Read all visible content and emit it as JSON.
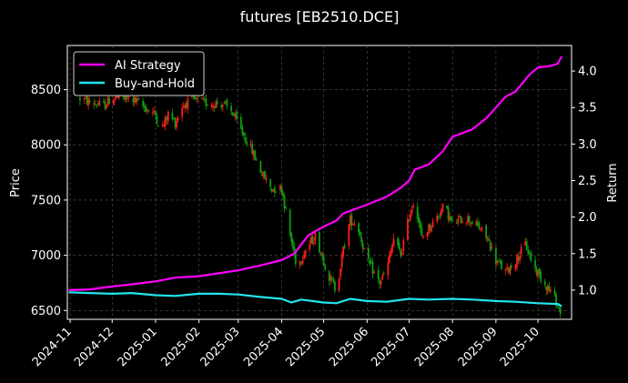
{
  "chart_data": {
    "type": "line",
    "title": "futures [EB2510.DCE]",
    "ylabel_left": "Price",
    "ylabel_right": "Return",
    "x_range": [
      "2024-10-30",
      "2025-10-25"
    ],
    "x_ticks": [
      "2024-11",
      "2024-12",
      "2025-01",
      "2025-02",
      "2025-03",
      "2025-04",
      "2025-05",
      "2025-06",
      "2025-07",
      "2025-08",
      "2025-09",
      "2025-10"
    ],
    "ylim_left": [
      6420,
      8900
    ],
    "yticks_left": [
      6500,
      7000,
      7500,
      8000,
      8500
    ],
    "ylim_right": [
      0.6,
      4.35
    ],
    "yticks_right": [
      1.0,
      1.5,
      2.0,
      2.5,
      3.0,
      3.5,
      4.0
    ],
    "ytick_labels_right": [
      "1.0",
      "1.5",
      "2.0",
      "2.5",
      "3.0",
      "3.5",
      "4.0"
    ],
    "grid": true,
    "legend_position": "top-left",
    "colors": {
      "background": "#000000",
      "ai_strategy": "#ff00ff",
      "buy_and_hold": "#22e5f0",
      "candle_up": "#ff1a1a",
      "candle_down": "#0f9d0f",
      "grid": "#555555"
    },
    "series": [
      {
        "name": "AI Strategy",
        "axis": "right",
        "points": [
          [
            "2024-10-31",
            1.0
          ],
          [
            "2024-11-15",
            1.01
          ],
          [
            "2024-12-01",
            1.05
          ],
          [
            "2024-12-15",
            1.08
          ],
          [
            "2025-01-01",
            1.12
          ],
          [
            "2025-01-15",
            1.17
          ],
          [
            "2025-02-01",
            1.19
          ],
          [
            "2025-02-15",
            1.23
          ],
          [
            "2025-03-01",
            1.27
          ],
          [
            "2025-03-15",
            1.33
          ],
          [
            "2025-04-01",
            1.41
          ],
          [
            "2025-04-10",
            1.5
          ],
          [
            "2025-04-20",
            1.75
          ],
          [
            "2025-05-01",
            1.87
          ],
          [
            "2025-05-10",
            1.95
          ],
          [
            "2025-05-15",
            2.05
          ],
          [
            "2025-06-01",
            2.17
          ],
          [
            "2025-06-15",
            2.28
          ],
          [
            "2025-06-25",
            2.4
          ],
          [
            "2025-07-01",
            2.5
          ],
          [
            "2025-07-05",
            2.65
          ],
          [
            "2025-07-15",
            2.72
          ],
          [
            "2025-07-25",
            2.9
          ],
          [
            "2025-08-01",
            3.1
          ],
          [
            "2025-08-15",
            3.2
          ],
          [
            "2025-08-25",
            3.35
          ],
          [
            "2025-09-01",
            3.5
          ],
          [
            "2025-09-08",
            3.65
          ],
          [
            "2025-09-15",
            3.72
          ],
          [
            "2025-09-25",
            3.95
          ],
          [
            "2025-10-01",
            4.05
          ],
          [
            "2025-10-10",
            4.07
          ],
          [
            "2025-10-15",
            4.1
          ],
          [
            "2025-10-18",
            4.2
          ]
        ]
      },
      {
        "name": "Buy-and-Hold",
        "axis": "right",
        "points": [
          [
            "2024-10-31",
            0.97
          ],
          [
            "2024-11-15",
            0.96
          ],
          [
            "2024-12-01",
            0.95
          ],
          [
            "2024-12-15",
            0.96
          ],
          [
            "2025-01-01",
            0.93
          ],
          [
            "2025-01-15",
            0.92
          ],
          [
            "2025-02-01",
            0.95
          ],
          [
            "2025-02-15",
            0.95
          ],
          [
            "2025-03-01",
            0.94
          ],
          [
            "2025-03-15",
            0.91
          ],
          [
            "2025-04-01",
            0.88
          ],
          [
            "2025-04-08",
            0.83
          ],
          [
            "2025-04-15",
            0.87
          ],
          [
            "2025-05-01",
            0.83
          ],
          [
            "2025-05-10",
            0.82
          ],
          [
            "2025-05-20",
            0.88
          ],
          [
            "2025-06-01",
            0.85
          ],
          [
            "2025-06-15",
            0.84
          ],
          [
            "2025-07-01",
            0.88
          ],
          [
            "2025-07-15",
            0.87
          ],
          [
            "2025-08-01",
            0.88
          ],
          [
            "2025-08-15",
            0.87
          ],
          [
            "2025-09-01",
            0.85
          ],
          [
            "2025-09-15",
            0.84
          ],
          [
            "2025-10-01",
            0.82
          ],
          [
            "2025-10-15",
            0.81
          ],
          [
            "2025-10-18",
            0.78
          ]
        ]
      }
    ],
    "price_path": [
      [
        "2024-11-08",
        8420
      ],
      [
        "2024-11-12",
        8400
      ],
      [
        "2024-11-25",
        8350
      ],
      [
        "2024-12-01",
        8430
      ],
      [
        "2024-12-15",
        8420
      ],
      [
        "2025-01-01",
        8270
      ],
      [
        "2025-01-05",
        8130
      ],
      [
        "2025-01-10",
        8280
      ],
      [
        "2025-01-15",
        8200
      ],
      [
        "2025-01-20",
        8350
      ],
      [
        "2025-01-26",
        8410
      ],
      [
        "2025-02-05",
        8380
      ],
      [
        "2025-02-18",
        8370
      ],
      [
        "2025-02-25",
        8290
      ],
      [
        "2025-03-01",
        8180
      ],
      [
        "2025-03-10",
        7970
      ],
      [
        "2025-03-18",
        7740
      ],
      [
        "2025-03-25",
        7600
      ],
      [
        "2025-04-01",
        7610
      ],
      [
        "2025-04-07",
        7180
      ],
      [
        "2025-04-12",
        6900
      ],
      [
        "2025-04-18",
        7050
      ],
      [
        "2025-04-25",
        7180
      ],
      [
        "2025-05-05",
        6800
      ],
      [
        "2025-05-10",
        6680
      ],
      [
        "2025-05-15",
        7050
      ],
      [
        "2025-05-20",
        7320
      ],
      [
        "2025-05-25",
        7280
      ],
      [
        "2025-06-01",
        6950
      ],
      [
        "2025-06-10",
        6750
      ],
      [
        "2025-06-15",
        6870
      ],
      [
        "2025-06-20",
        7150
      ],
      [
        "2025-06-25",
        7000
      ],
      [
        "2025-07-01",
        7350
      ],
      [
        "2025-07-05",
        7520
      ],
      [
        "2025-07-10",
        7150
      ],
      [
        "2025-07-15",
        7250
      ],
      [
        "2025-07-20",
        7330
      ],
      [
        "2025-07-26",
        7450
      ],
      [
        "2025-08-01",
        7280
      ],
      [
        "2025-08-10",
        7350
      ],
      [
        "2025-08-20",
        7250
      ],
      [
        "2025-08-26",
        7150
      ],
      [
        "2025-09-01",
        6950
      ],
      [
        "2025-09-08",
        6850
      ],
      [
        "2025-09-15",
        6950
      ],
      [
        "2025-09-22",
        7100
      ],
      [
        "2025-09-28",
        6900
      ],
      [
        "2025-10-05",
        6760
      ],
      [
        "2025-10-12",
        6640
      ],
      [
        "2025-10-16",
        6520
      ],
      [
        "2025-10-18",
        6470
      ]
    ]
  }
}
